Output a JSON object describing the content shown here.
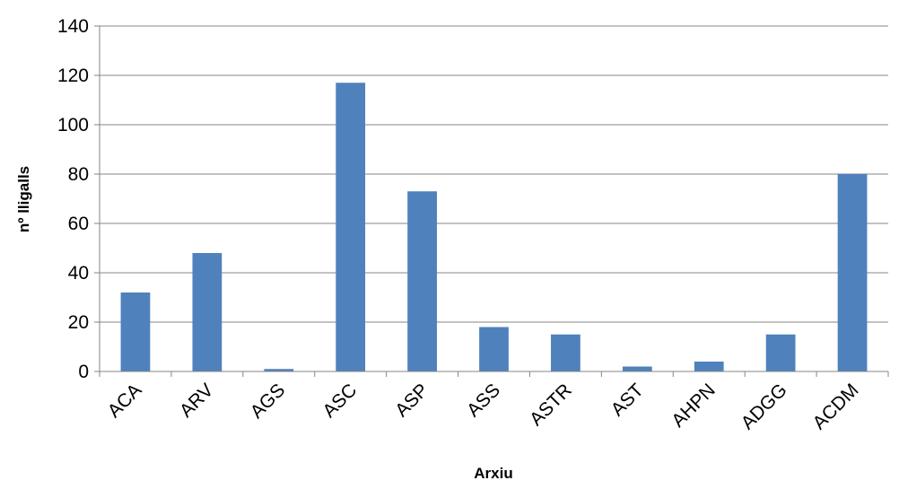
{
  "chart_data": {
    "type": "bar",
    "title": "",
    "xlabel": "Arxiu",
    "ylabel": "nº lligalls",
    "categories": [
      "ACA",
      "ARV",
      "AGS",
      "ASC",
      "ASP",
      "ASS",
      "ASTR",
      "AST",
      "AHPN",
      "ADGG",
      "ACDM"
    ],
    "values": [
      32,
      48,
      1,
      117,
      73,
      18,
      15,
      2,
      4,
      15,
      80
    ],
    "ylim": [
      0,
      140
    ],
    "yticks": [
      0,
      20,
      40,
      60,
      80,
      100,
      120,
      140
    ],
    "grid": true,
    "legend": "none",
    "bar_color": "#4F81BD"
  }
}
